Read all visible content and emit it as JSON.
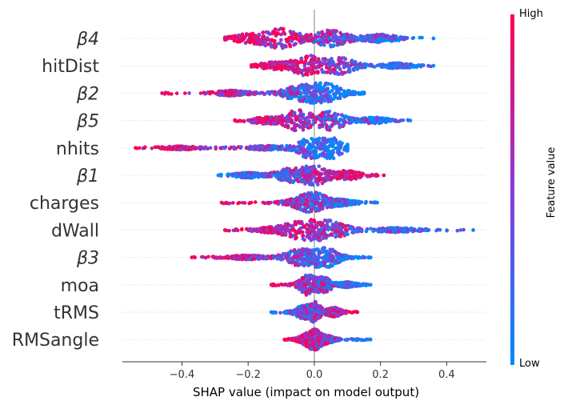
{
  "chart_data": {
    "type": "scatter",
    "style": "beeswarm",
    "xlabel": "SHAP value (impact on model output)",
    "xlim": [
      -0.58,
      0.52
    ],
    "xticks": [
      "−0.4",
      "−0.2",
      "0.0",
      "0.2",
      "0.4"
    ],
    "xtick_values": [
      -0.4,
      -0.2,
      0.0,
      0.2,
      0.4
    ],
    "colorbar": {
      "label": "Feature value",
      "high": "High",
      "low": "Low",
      "high_color": "#ff0052",
      "low_color": "#008bfb"
    },
    "features": [
      {
        "name": "β4",
        "min": -0.27,
        "max": 0.36,
        "low_side": "right",
        "density": [
          [
            -0.1,
            1.0
          ],
          [
            0.05,
            0.8
          ],
          [
            -0.2,
            0.4
          ],
          [
            0.2,
            0.35
          ]
        ]
      },
      {
        "name": "hitDist",
        "min": -0.19,
        "max": 0.36,
        "low_side": "right",
        "density": [
          [
            -0.02,
            1.0
          ],
          [
            0.08,
            0.8
          ],
          [
            -0.12,
            0.3
          ],
          [
            0.25,
            0.2
          ]
        ]
      },
      {
        "name": "β2",
        "min": -0.46,
        "max": 0.15,
        "low_side": "right",
        "density": [
          [
            0.03,
            1.0
          ],
          [
            -0.05,
            0.6
          ],
          [
            -0.25,
            0.2
          ]
        ]
      },
      {
        "name": "β5",
        "min": -0.24,
        "max": 0.29,
        "low_side": "right",
        "density": [
          [
            -0.05,
            1.0
          ],
          [
            0.05,
            0.9
          ],
          [
            0.18,
            0.25
          ],
          [
            -0.15,
            0.25
          ]
        ]
      },
      {
        "name": "nhits",
        "min": -0.54,
        "max": 0.1,
        "low_side": "right",
        "density": [
          [
            0.03,
            1.0
          ],
          [
            0.0,
            0.7
          ],
          [
            -0.15,
            0.15
          ],
          [
            -0.4,
            0.1
          ]
        ]
      },
      {
        "name": "β1",
        "min": -0.29,
        "max": 0.21,
        "low_side": "left",
        "density": [
          [
            0.0,
            1.0
          ],
          [
            -0.08,
            0.6
          ],
          [
            0.1,
            0.4
          ],
          [
            -0.2,
            0.2
          ]
        ]
      },
      {
        "name": "charges",
        "min": -0.28,
        "max": 0.19,
        "low_side": "right",
        "density": [
          [
            0.0,
            1.0
          ],
          [
            -0.05,
            0.3
          ],
          [
            0.08,
            0.25
          ]
        ]
      },
      {
        "name": "dWall",
        "min": -0.27,
        "max": 0.48,
        "low_side": "right",
        "density": [
          [
            -0.02,
            1.0
          ],
          [
            0.05,
            0.6
          ],
          [
            -0.12,
            0.2
          ],
          [
            0.25,
            0.15
          ]
        ]
      },
      {
        "name": "β3",
        "min": -0.37,
        "max": 0.17,
        "low_side": "right",
        "density": [
          [
            0.03,
            1.0
          ],
          [
            -0.05,
            0.7
          ],
          [
            -0.2,
            0.15
          ]
        ]
      },
      {
        "name": "moa",
        "min": -0.13,
        "max": 0.17,
        "low_side": "right",
        "density": [
          [
            -0.02,
            1.0
          ],
          [
            0.03,
            0.7
          ],
          [
            0.1,
            0.2
          ]
        ]
      },
      {
        "name": "tRMS",
        "min": -0.13,
        "max": 0.13,
        "low_side": "left",
        "density": [
          [
            0.0,
            1.0
          ],
          [
            -0.04,
            0.5
          ],
          [
            0.06,
            0.4
          ]
        ]
      },
      {
        "name": "RMSangle",
        "min": -0.09,
        "max": 0.17,
        "low_side": "right",
        "density": [
          [
            0.0,
            1.0
          ],
          [
            0.04,
            0.3
          ],
          [
            -0.03,
            0.3
          ]
        ]
      }
    ]
  }
}
